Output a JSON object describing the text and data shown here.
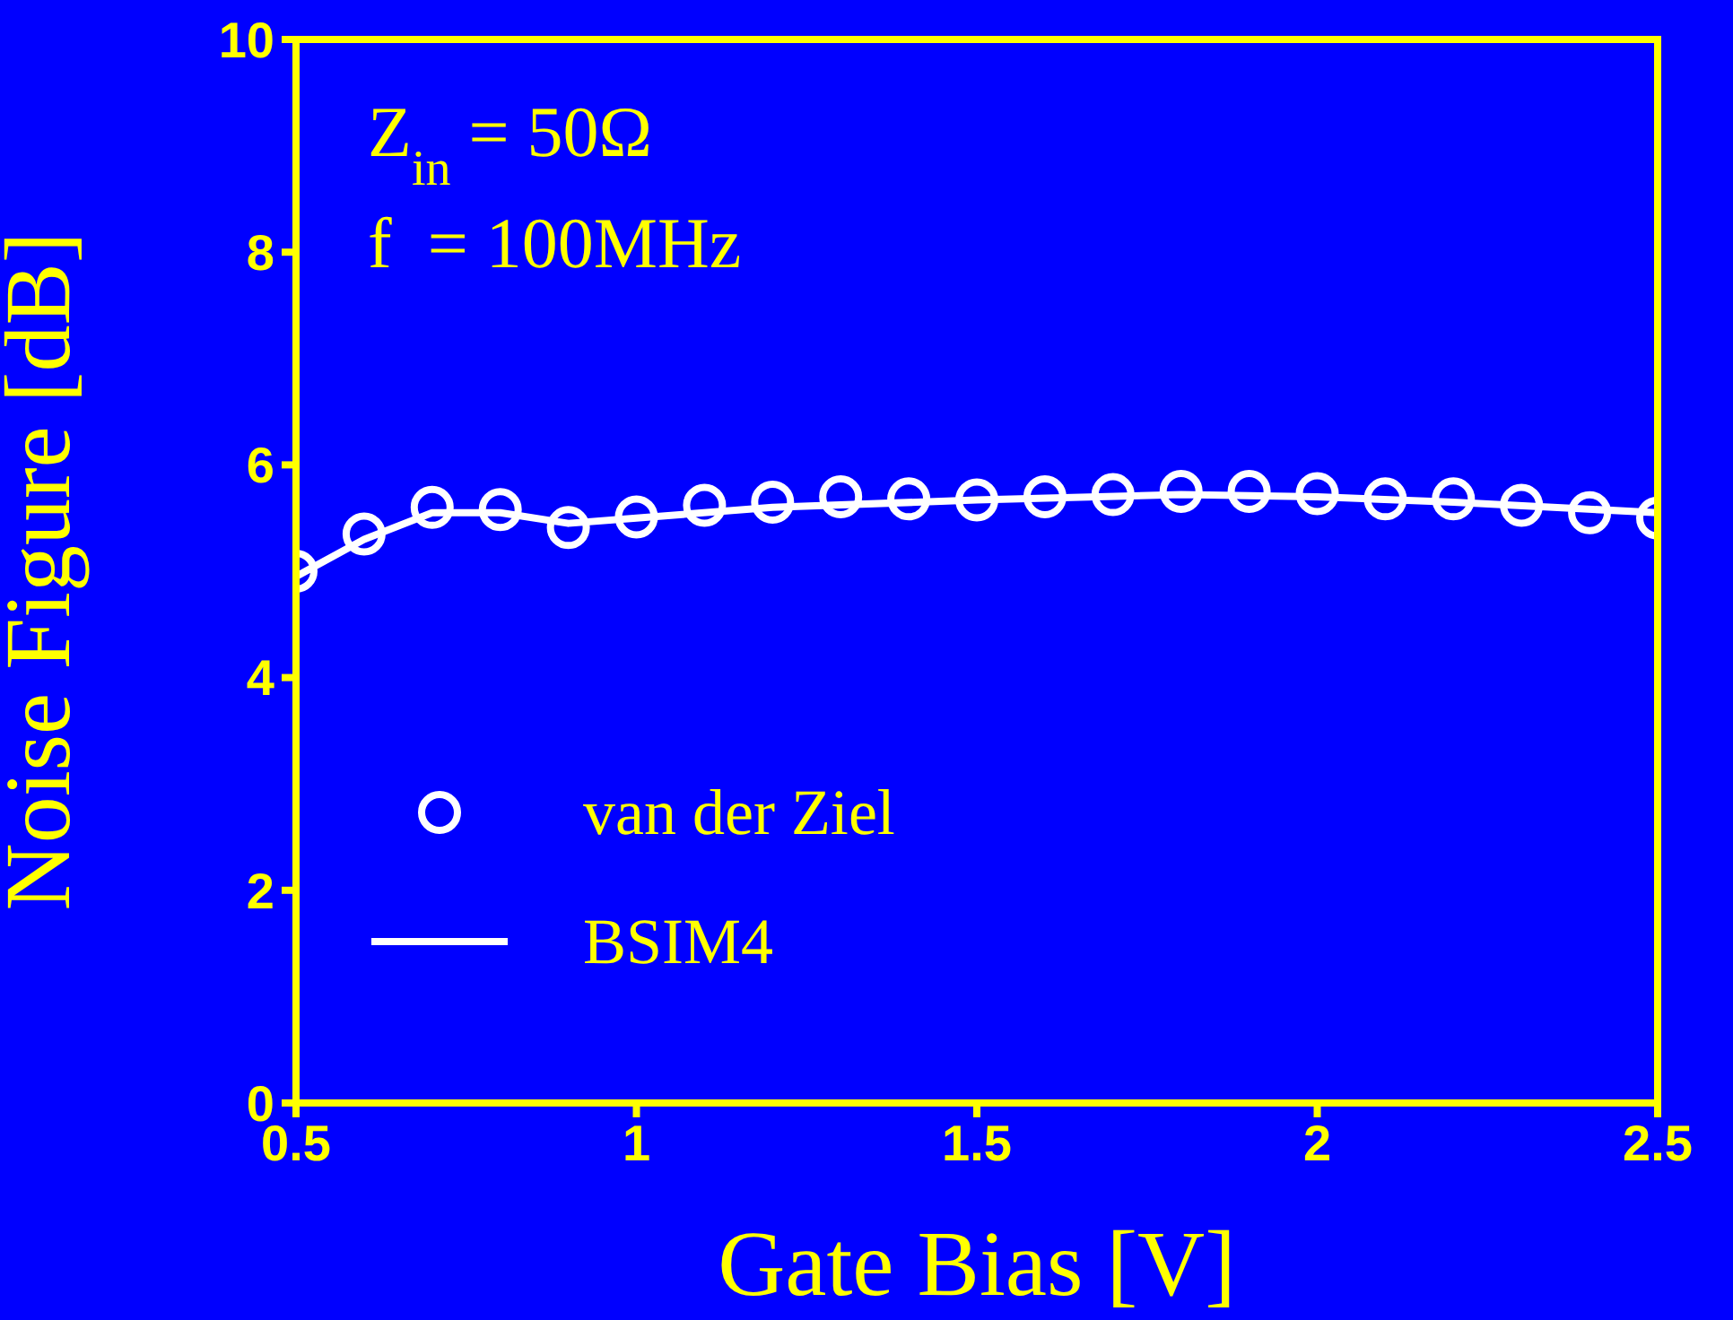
{
  "chart_data": {
    "type": "line",
    "xlabel": "Gate Bias [V]",
    "ylabel": "Noise Figure [dB]",
    "annotations": [
      "Z$_{in}$ = 50Ω",
      "f  = 100MHz"
    ],
    "series": [
      {
        "name": "van der Ziel",
        "type": "scatter",
        "marker": "circle",
        "color": "#ffffff",
        "x": [
          0.5,
          0.6,
          0.7,
          0.8,
          0.9,
          1.0,
          1.1,
          1.2,
          1.3,
          1.4,
          1.5,
          1.6,
          1.7,
          1.8,
          1.9,
          2.0,
          2.1,
          2.2,
          2.3,
          2.4,
          2.5
        ],
        "values": [
          5.0,
          5.35,
          5.6,
          5.58,
          5.41,
          5.51,
          5.62,
          5.65,
          5.7,
          5.68,
          5.67,
          5.7,
          5.72,
          5.75,
          5.75,
          5.73,
          5.68,
          5.68,
          5.62,
          5.55,
          5.5
        ]
      },
      {
        "name": "BSIM4",
        "type": "line",
        "line_style": "solid",
        "color": "#ffffff",
        "x": [
          0.5,
          0.6,
          0.7,
          0.8,
          0.9,
          1.0,
          1.2,
          1.5,
          1.8,
          2.0,
          2.2,
          2.5
        ],
        "values": [
          4.95,
          5.3,
          5.55,
          5.55,
          5.45,
          5.5,
          5.6,
          5.67,
          5.72,
          5.7,
          5.65,
          5.55
        ]
      }
    ],
    "xlim": [
      0.5,
      2.5
    ],
    "xticks": [
      0.5,
      1,
      1.5,
      2,
      2.5
    ],
    "ylim": [
      0,
      10
    ],
    "yticks": [
      0,
      2,
      4,
      6,
      8,
      10
    ],
    "grid": false,
    "legend": "bottom left"
  }
}
